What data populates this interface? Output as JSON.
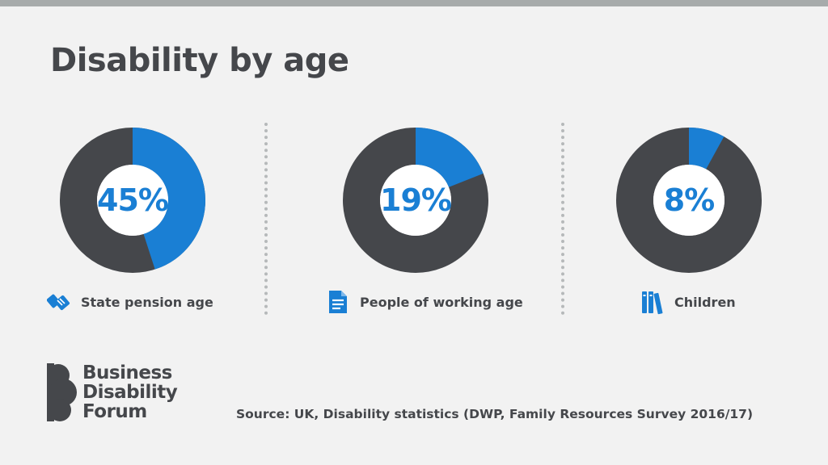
{
  "title": "Disability by age",
  "colors": {
    "accent": "#1a7fd4",
    "ring": "#45474b",
    "center": "#ffffff",
    "text": "#45474b"
  },
  "chart_data": [
    {
      "type": "pie",
      "category": "State pension age",
      "value": 45,
      "value_label": "45%",
      "icon": "handshake-icon"
    },
    {
      "type": "pie",
      "category": "People of working age",
      "value": 19,
      "value_label": "19%",
      "icon": "document-icon"
    },
    {
      "type": "pie",
      "category": "Children",
      "value": 8,
      "value_label": "8%",
      "icon": "books-icon"
    }
  ],
  "logo": {
    "lines": [
      "Business",
      "Disability",
      "Forum"
    ]
  },
  "source": "Source: UK, Disability statistics (DWP, Family Resources Survey 2016/17)"
}
